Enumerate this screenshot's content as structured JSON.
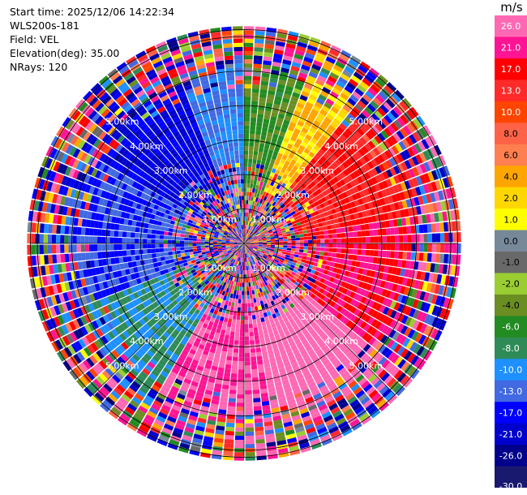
{
  "info": {
    "start_time": "Start time: 2025/12/06 14:22:34",
    "instrument": "WLS200s-181",
    "field": "Field: VEL",
    "elevation": "Elevation(deg): 35.00",
    "nrays": "NRays: 120"
  },
  "colorbar": {
    "unit": "m/s",
    "ticks": [
      "26.0",
      "21.0",
      "17.0",
      "13.0",
      "10.0",
      "8.0",
      "6.0",
      "4.0",
      "2.0",
      "1.0",
      "0.0",
      "-1.0",
      "-2.0",
      "-4.0",
      "-6.0",
      "-8.0",
      "-10.0",
      "-13.0",
      "-17.0",
      "-21.0",
      "-26.0",
      "-30.0"
    ],
    "colors": [
      "#ff69b4",
      "#ff1493",
      "#ff0000",
      "#ff2a2a",
      "#ff4500",
      "#ff6347",
      "#ff7f50",
      "#ffa500",
      "#ffd700",
      "#ffff00",
      "#778899",
      "#696969",
      "#9acd32",
      "#6b8e23",
      "#228b22",
      "#2e8b57",
      "#1e90ff",
      "#4169e1",
      "#0000ff",
      "#0000cd",
      "#00008b",
      "#191970"
    ]
  },
  "chart_data": {
    "type": "ppi",
    "field": "VEL",
    "units": "m/s",
    "nrays": 120,
    "elevation_deg": 35.0,
    "range_ring_labels": [
      "1.00km",
      "2.00km",
      "3.00km",
      "4.00km",
      "5.00km"
    ],
    "range_rings_km": [
      1,
      2,
      3,
      4,
      5,
      6
    ],
    "vmin": -30.0,
    "vmax": 26.0,
    "max_range_km": 6.2,
    "dominant_velocity_by_sector": [
      {
        "azimuth_deg": [
          0,
          20
        ],
        "velocity_ms": -6.0
      },
      {
        "azimuth_deg": [
          20,
          40
        ],
        "velocity_ms": 2.0
      },
      {
        "azimuth_deg": [
          40,
          80
        ],
        "velocity_ms": 13.0
      },
      {
        "azimuth_deg": [
          80,
          130
        ],
        "velocity_ms": 17.0
      },
      {
        "azimuth_deg": [
          130,
          170
        ],
        "velocity_ms": 26.0
      },
      {
        "azimuth_deg": [
          170,
          210
        ],
        "velocity_ms": 21.0
      },
      {
        "azimuth_deg": [
          210,
          250
        ],
        "velocity_ms": -10.0
      },
      {
        "azimuth_deg": [
          250,
          300
        ],
        "velocity_ms": -17.0
      },
      {
        "azimuth_deg": [
          300,
          340
        ],
        "velocity_ms": -21.0
      },
      {
        "azimuth_deg": [
          340,
          360
        ],
        "velocity_ms": -13.0
      }
    ]
  }
}
